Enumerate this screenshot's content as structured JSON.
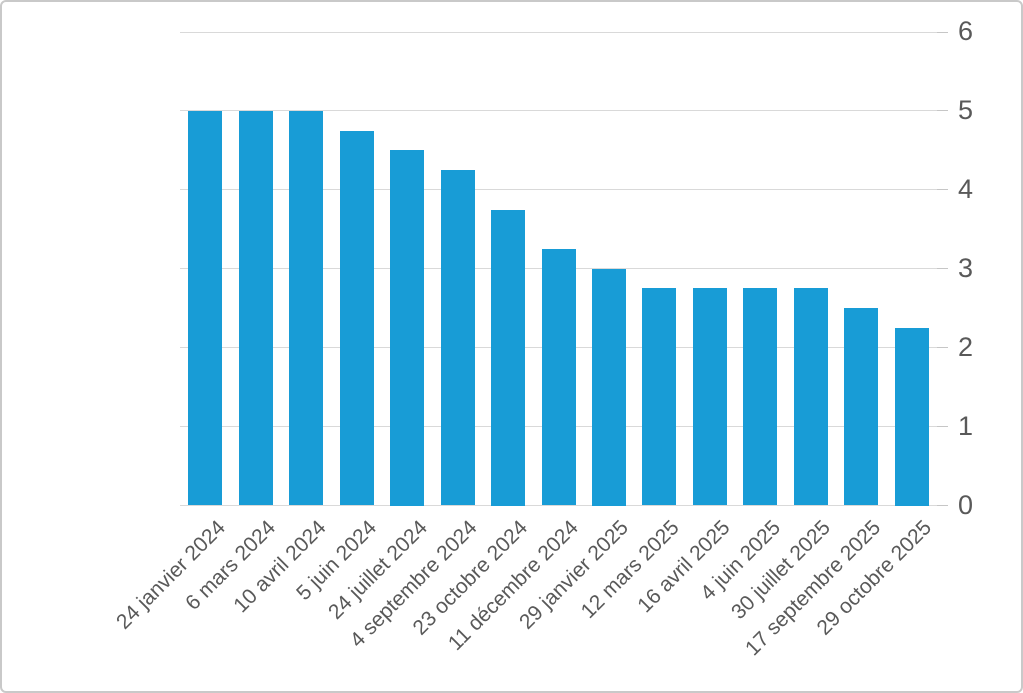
{
  "chart_data": {
    "type": "bar",
    "title": "",
    "xlabel": "",
    "ylabel": "",
    "categories": [
      "24 janvier 2024",
      "6 mars 2024",
      "10 avril 2024",
      "5 juin 2024",
      "24 juillet 2024",
      "4 septembre 2024",
      "23 octobre 2024",
      "11 décembre 2024",
      "29 janvier 2025",
      "12 mars 2025",
      "16 avril 2025",
      "4 juin 2025",
      "30 juillet 2025",
      "17 septembre 2025",
      "29 octobre 2025"
    ],
    "values": [
      5,
      5,
      5,
      4.75,
      4.5,
      4.25,
      3.75,
      3.25,
      3,
      2.75,
      2.75,
      2.75,
      2.75,
      2.5,
      2.25
    ],
    "ylim": [
      0,
      6
    ],
    "yticks": [
      0,
      1,
      2,
      3,
      4,
      5,
      6
    ],
    "y_axis_side": "right",
    "grid": true,
    "x_label_rotation_deg": 45,
    "legend": null,
    "colors": {
      "bar": "#189cd6",
      "gridline": "#d9d9d9",
      "tick": "#c6c6c6",
      "axis_text": "#595959",
      "background": "#ffffff",
      "border": "#c9c9c9"
    }
  }
}
